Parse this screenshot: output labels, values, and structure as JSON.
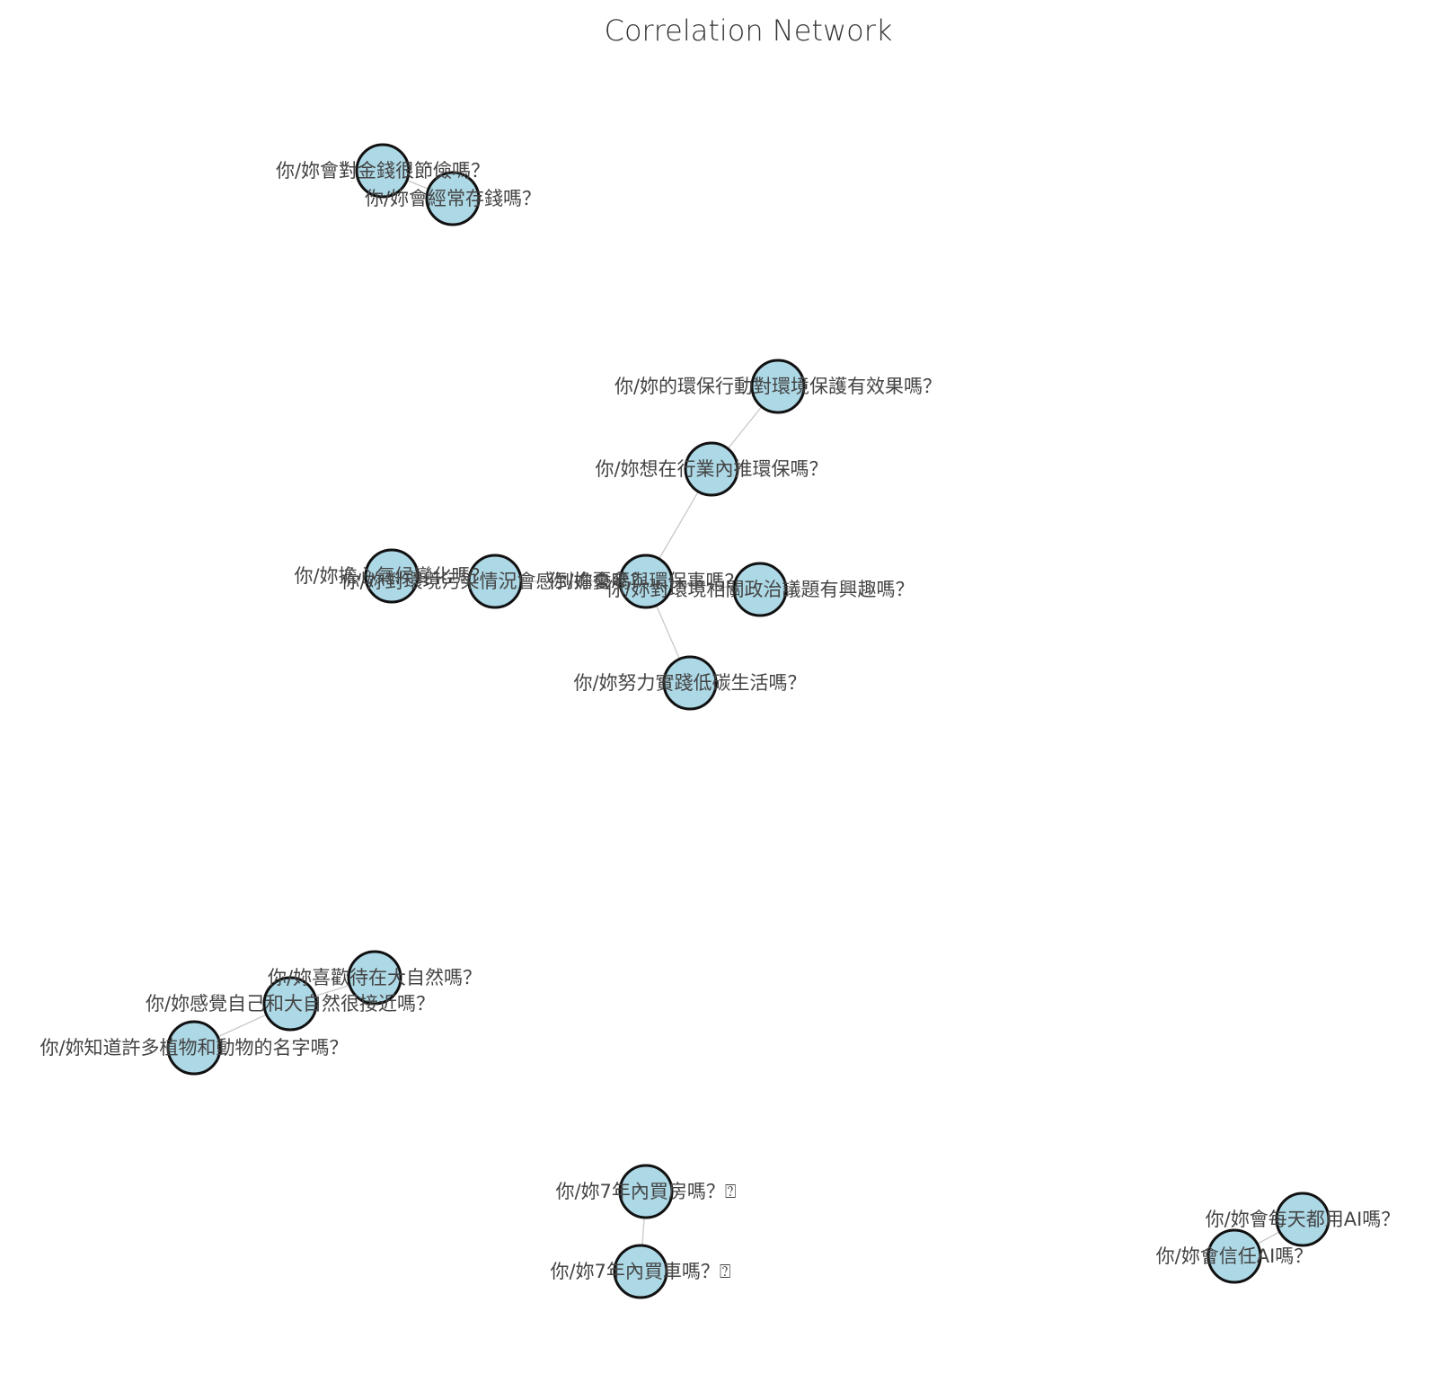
{
  "title": "Correlation Network",
  "colors": {
    "node_fill": "#add8e6",
    "node_stroke": "#111111",
    "edge": "#c8c8c8",
    "label": "#444444",
    "title": "#333333"
  },
  "nodes": [
    {
      "id": "n1",
      "label": "你/妳會對金錢很節儉嗎？"
    },
    {
      "id": "n2",
      "label": "你/妳會經常存錢嗎？"
    },
    {
      "id": "n3",
      "label": "你/妳的環保行動對環境保護有效果嗎？"
    },
    {
      "id": "n4",
      "label": "你/妳想在行業內推環保嗎？"
    },
    {
      "id": "n5",
      "label": "你/妳擔心氣候變化嗎？"
    },
    {
      "id": "n6",
      "label": "你/妳對環境污染情況會感到擔憂嗎？"
    },
    {
      "id": "n7",
      "label": "你/妳會參與環保事嗎？"
    },
    {
      "id": "n8",
      "label": "你/妳對環境相關政治議題有興趣嗎？"
    },
    {
      "id": "n9",
      "label": "你/妳努力實踐低碳生活嗎？"
    },
    {
      "id": "n10",
      "label": "你/妳喜歡待在大自然嗎？"
    },
    {
      "id": "n11",
      "label": "你/妳感覺自己和大自然很接近嗎？"
    },
    {
      "id": "n12",
      "label": "你/妳知道許多植物和動物的名字嗎？"
    },
    {
      "id": "n13",
      "label": "你/妳7年內買房嗎？⍰"
    },
    {
      "id": "n14",
      "label": "你/妳7年內買車嗎？⍰"
    },
    {
      "id": "n15",
      "label": "你/妳會每天都用AI嗎？"
    },
    {
      "id": "n16",
      "label": "你/妳會信任AI嗎？"
    }
  ],
  "edges": [
    {
      "source": "n1",
      "target": "n2"
    },
    {
      "source": "n3",
      "target": "n4"
    },
    {
      "source": "n4",
      "target": "n7"
    },
    {
      "source": "n5",
      "target": "n6"
    },
    {
      "source": "n6",
      "target": "n7"
    },
    {
      "source": "n7",
      "target": "n8"
    },
    {
      "source": "n7",
      "target": "n9"
    },
    {
      "source": "n10",
      "target": "n11"
    },
    {
      "source": "n11",
      "target": "n12"
    },
    {
      "source": "n13",
      "target": "n14"
    },
    {
      "source": "n15",
      "target": "n16"
    }
  ]
}
